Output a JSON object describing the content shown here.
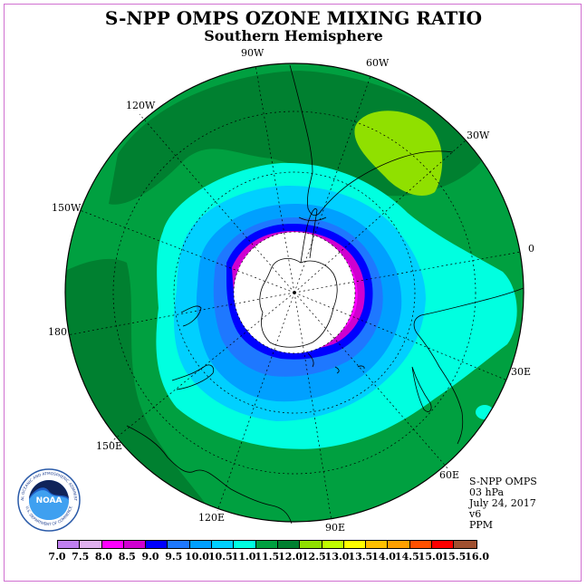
{
  "title": "S-NPP OMPS OZONE MIXING RATIO",
  "subtitle": "Southern Hemisphere",
  "longitude_labels": {
    "lon_90w": "90W",
    "lon_60w": "60W",
    "lon_120w": "120W",
    "lon_30w": "30W",
    "lon_150w": "150W",
    "lon_0": "0",
    "lon_180": "180",
    "lon_30e": "30E",
    "lon_150e": "150E",
    "lon_60e": "60E",
    "lon_120e": "120E",
    "lon_90e": "90E"
  },
  "info": {
    "instrument": "S-NPP OMPS",
    "level": "03 hPa",
    "date": "July 24, 2017",
    "version": "v6",
    "units": "PPM"
  },
  "logo": {
    "text": "NOAA",
    "ring_text": "NATIONAL OCEANIC AND ATMOSPHERIC ADMINISTRATION",
    "ring_text_bottom": "U.S. DEPARTMENT OF COMMERCE"
  },
  "colorbar": {
    "labels": [
      "7.0",
      "7.5",
      "8.0",
      "8.5",
      "9.0",
      "9.5",
      "10.0",
      "10.5",
      "11.0",
      "11.5",
      "12.0",
      "12.5",
      "13.0",
      "13.5",
      "14.0",
      "14.5",
      "15.0",
      "15.5",
      "16.0"
    ],
    "colors": [
      "#c080f0",
      "#e0b0f0",
      "#ff00ff",
      "#d000d0",
      "#0000ff",
      "#1e78ff",
      "#00a0ff",
      "#00d0ff",
      "#00ffe0",
      "#00a040",
      "#008030",
      "#90e000",
      "#c0ff00",
      "#ffff00",
      "#ffc000",
      "#ffa000",
      "#ff5000",
      "#ff0000",
      "#a05030"
    ]
  }
}
